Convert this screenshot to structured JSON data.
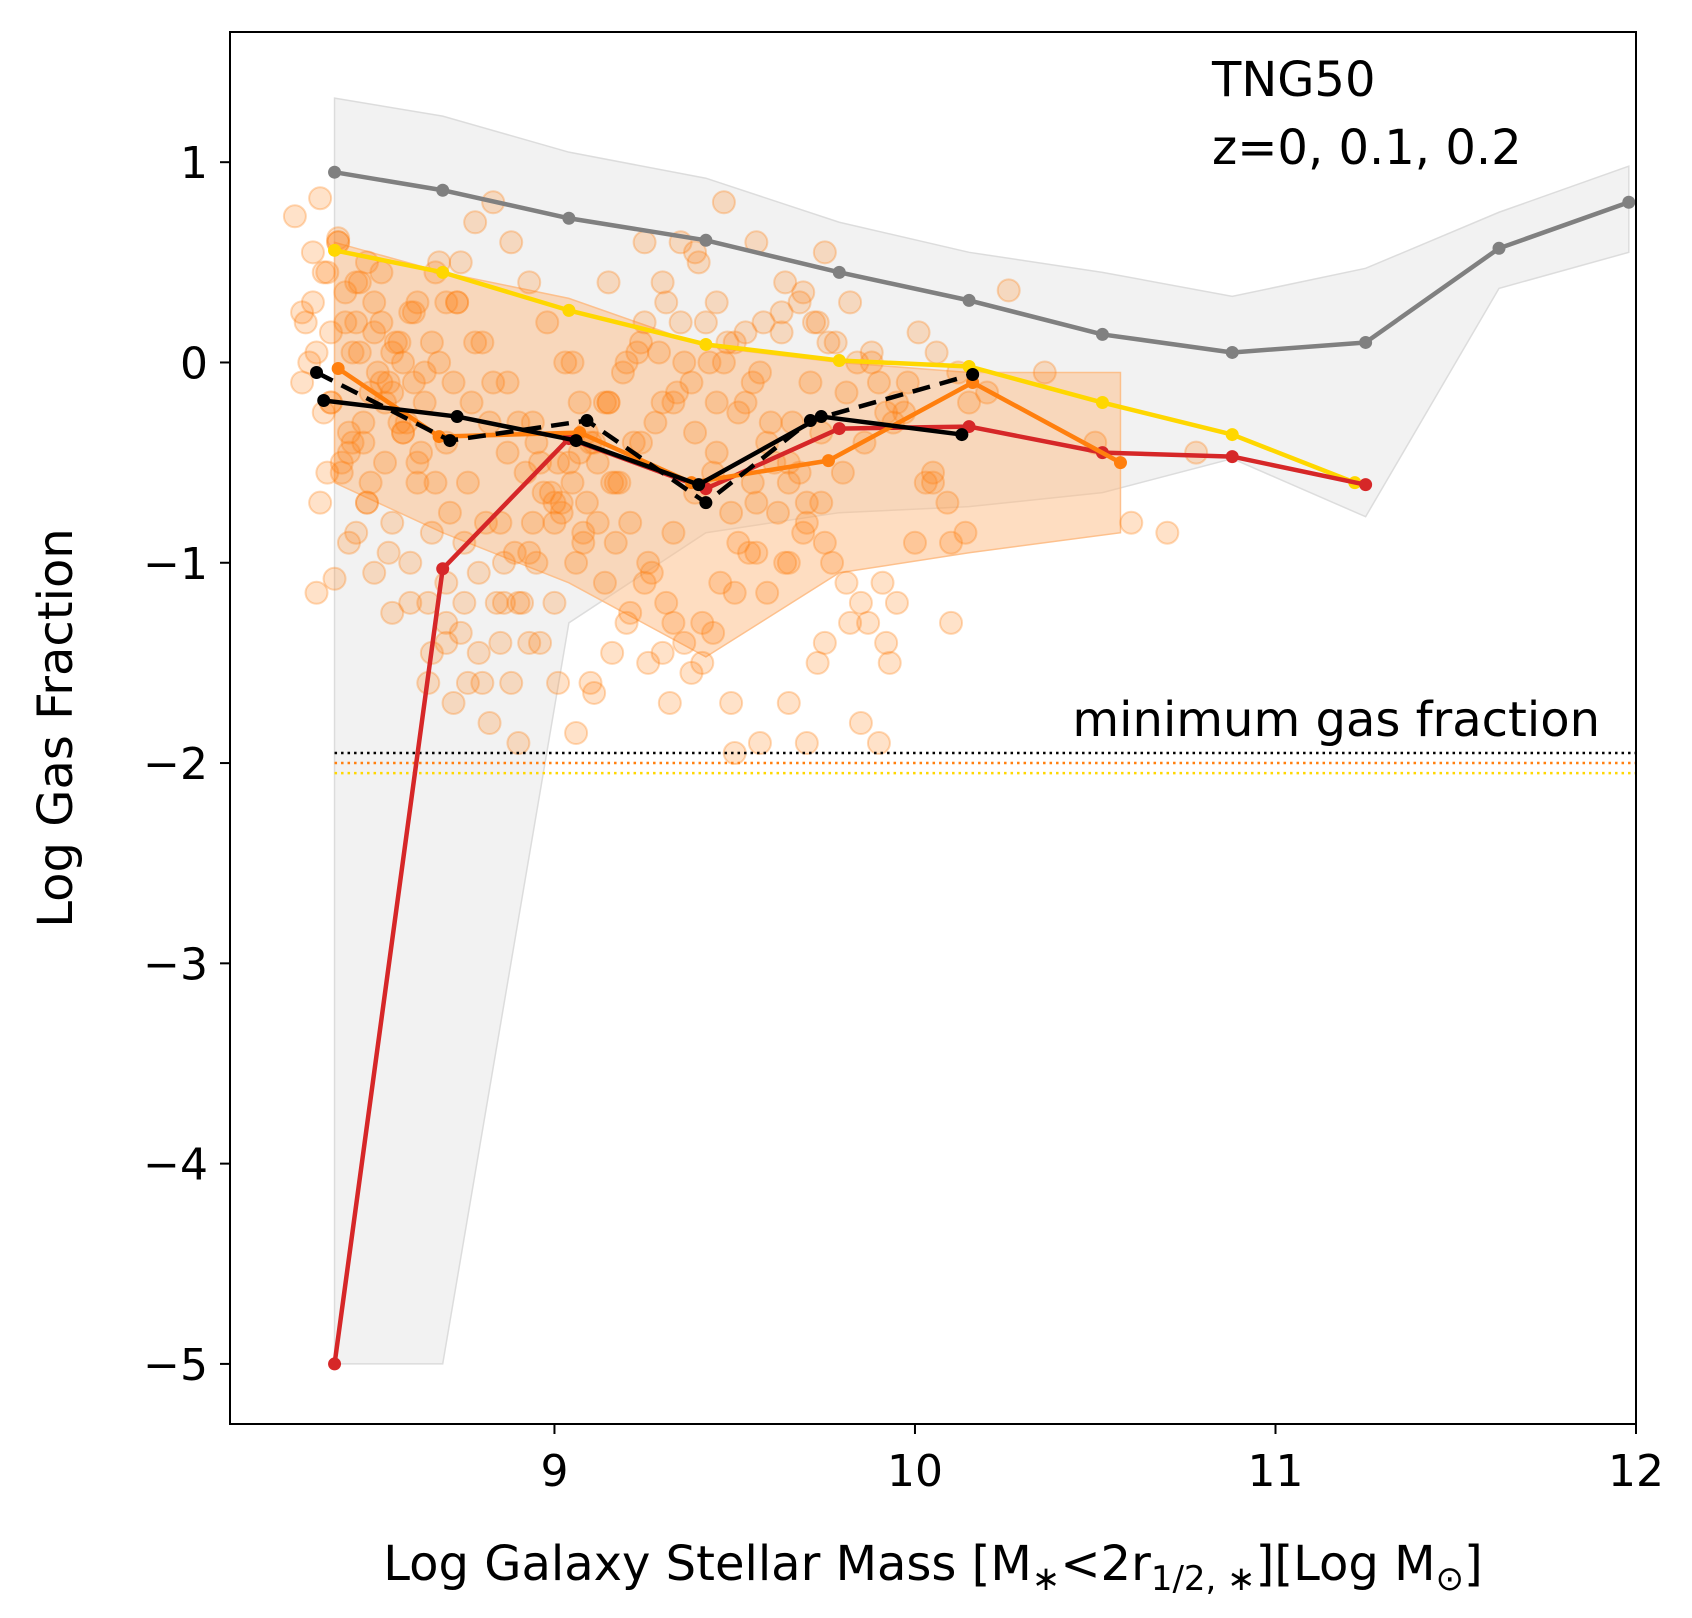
{
  "chart_data": {
    "type": "line",
    "title": "",
    "xlabel_main": "Log Galaxy Stellar Mass [M",
    "xlabel_sub1": "∗",
    "xlabel_mid": "<2r",
    "xlabel_sub2": "1/2, ∗",
    "xlabel_mid2": "][Log M",
    "xlabel_sub3": "⊙",
    "xlabel_end": "]",
    "ylabel": "Log Gas Fraction",
    "xlim": [
      8.1,
      12.0
    ],
    "ylim": [
      -5.3,
      1.65
    ],
    "xticks": [
      9,
      10,
      11,
      12
    ],
    "xtick_labels": [
      "9",
      "10",
      "11",
      "12"
    ],
    "yticks": [
      1,
      0,
      -1,
      -2,
      -3,
      -4,
      -5
    ],
    "ytick_labels": [
      "1",
      "0",
      "−1",
      "−2",
      "−3",
      "−4",
      "−5"
    ],
    "annotations": {
      "sim_name": "TNG50",
      "redshifts": "z=0, 0.1, 0.2",
      "min_label": "minimum gas fraction"
    },
    "min_lines": [
      {
        "y": -1.95,
        "color": "#000000"
      },
      {
        "y": -2.0,
        "color": "#ff7f0e"
      },
      {
        "y": -2.05,
        "color": "#ffd700"
      }
    ],
    "bands": [
      {
        "name": "gray-band",
        "color": "#d9d9d9",
        "opacity": 0.35,
        "x": [
          8.39,
          8.69,
          9.04,
          9.42,
          9.79,
          10.15,
          10.52,
          10.88,
          11.25,
          11.62,
          11.98
        ],
        "upper": [
          1.32,
          1.23,
          1.05,
          0.92,
          0.7,
          0.55,
          0.45,
          0.33,
          0.47,
          0.75,
          0.98
        ],
        "lower": [
          -5.0,
          -5.0,
          -1.3,
          -0.85,
          -0.75,
          -0.72,
          -0.65,
          -0.48,
          -0.77,
          0.37,
          0.55
        ]
      },
      {
        "name": "orange-band",
        "color": "#fdbb84",
        "opacity": 0.5,
        "x": [
          8.39,
          8.69,
          9.04,
          9.42,
          9.79,
          10.15,
          10.57
        ],
        "upper": [
          0.6,
          0.45,
          0.32,
          0.08,
          0.0,
          -0.05,
          -0.05
        ],
        "lower": [
          -0.6,
          -0.85,
          -1.1,
          -1.47,
          -1.05,
          -0.95,
          -0.85
        ]
      }
    ],
    "series": [
      {
        "name": "gray",
        "color": "#808080",
        "dash": false,
        "x": [
          8.39,
          8.69,
          9.04,
          9.42,
          9.79,
          10.15,
          10.52,
          10.88,
          11.25,
          11.62,
          11.98
        ],
        "y": [
          0.95,
          0.86,
          0.72,
          0.61,
          0.45,
          0.31,
          0.14,
          0.05,
          0.1,
          0.57,
          0.8
        ]
      },
      {
        "name": "gold",
        "color": "#ffd700",
        "dash": false,
        "x": [
          8.39,
          8.69,
          9.04,
          9.42,
          9.79,
          10.15,
          10.52,
          10.88,
          11.22
        ],
        "y": [
          0.56,
          0.45,
          0.26,
          0.09,
          0.01,
          -0.02,
          -0.2,
          -0.36,
          -0.6
        ]
      },
      {
        "name": "red",
        "color": "#d62728",
        "dash": false,
        "x": [
          8.39,
          8.69,
          9.04,
          9.42,
          9.79,
          10.15,
          10.52,
          10.88,
          11.25
        ],
        "y": [
          -5.0,
          -1.03,
          -0.38,
          -0.63,
          -0.33,
          -0.32,
          -0.45,
          -0.47,
          -0.61
        ]
      },
      {
        "name": "orange",
        "color": "#ff7f0e",
        "dash": false,
        "x": [
          8.4,
          8.68,
          9.07,
          9.38,
          9.76,
          10.16,
          10.57
        ],
        "y": [
          -0.03,
          -0.37,
          -0.35,
          -0.6,
          -0.49,
          -0.1,
          -0.5
        ]
      },
      {
        "name": "black-solid",
        "color": "#000000",
        "dash": false,
        "x": [
          8.36,
          8.73,
          9.06,
          9.4,
          9.74,
          10.13
        ],
        "y": [
          -0.19,
          -0.27,
          -0.39,
          -0.61,
          -0.27,
          -0.36
        ]
      },
      {
        "name": "black-dashed",
        "color": "#000000",
        "dash": true,
        "x": [
          8.34,
          8.71,
          9.09,
          9.42,
          9.71,
          10.16
        ],
        "y": [
          -0.05,
          -0.39,
          -0.29,
          -0.7,
          -0.29,
          -0.06
        ]
      }
    ],
    "scatter": {
      "name": "galaxies",
      "color": "#ff7f0e",
      "opacity": 0.3,
      "x": [
        8.28,
        8.33,
        8.35,
        8.4,
        8.42,
        8.45,
        8.48,
        8.52,
        8.38,
        8.44,
        8.5,
        8.56,
        8.6,
        8.64,
        8.3,
        8.36,
        8.41,
        8.47,
        8.53,
        8.58,
        8.62,
        8.68,
        8.72,
        8.77,
        8.82,
        8.87,
        8.92,
        8.97,
        9.02,
        9.08,
        9.12,
        9.17,
        9.22,
        9.28,
        9.33,
        9.38,
        9.43,
        9.48,
        9.53,
        9.58,
        9.63,
        9.68,
        9.73,
        9.78,
        9.84,
        9.9,
        9.95,
        10.01,
        10.06,
        10.12,
        10.2,
        10.26,
        10.36,
        10.5,
        10.6,
        10.7,
        10.78,
        8.33,
        8.37,
        8.42,
        8.46,
        8.51,
        8.55,
        8.59,
        8.63,
        8.67,
        8.71,
        8.75,
        8.79,
        8.84,
        8.89,
        8.94,
        8.99,
        9.04,
        9.09,
        9.14,
        9.19,
        9.24,
        9.29,
        9.34,
        9.39,
        9.44,
        9.49,
        9.54,
        9.59,
        9.64,
        9.69,
        9.74,
        9.8,
        9.86,
        9.92,
        9.98,
        8.34,
        8.39,
        8.43,
        8.48,
        8.53,
        8.57,
        8.61,
        8.66,
        8.7,
        8.74,
        8.78,
        8.83,
        8.88,
        8.93,
        8.98,
        9.03,
        9.07,
        9.11,
        9.16,
        9.21,
        9.26,
        9.31,
        9.36,
        9.41,
        9.46,
        9.51,
        9.56,
        9.61,
        9.66,
        9.71,
        9.76,
        9.82,
        9.88,
        9.94,
        10.03,
        10.1,
        8.31,
        8.36,
        8.4,
        8.45,
        8.5,
        8.54,
        8.58,
        8.62,
        8.66,
        8.7,
        8.74,
        8.8,
        8.85,
        8.9,
        8.95,
        9.0,
        9.05,
        9.1,
        9.15,
        9.2,
        9.25,
        9.3,
        9.35,
        9.4,
        9.45,
        9.5,
        9.55,
        9.6,
        9.65,
        9.7,
        9.75,
        9.81,
        9.87,
        9.93,
        8.35,
        8.41,
        8.47,
        8.52,
        8.57,
        8.62,
        8.68,
        8.73,
        8.78,
        8.83,
        8.9,
        8.96,
        9.02,
        9.08,
        9.14,
        9.2,
        9.26,
        9.32,
        9.38,
        9.44,
        9.5,
        9.56,
        9.62,
        9.68,
        9.74,
        9.81,
        9.88,
        9.97,
        10.05,
        10.14,
        8.32,
        8.38,
        8.44,
        8.49,
        8.55,
        8.6,
        8.65,
        8.7,
        8.76,
        8.82,
        8.88,
        8.93,
        9.0,
        9.06,
        9.12,
        9.18,
        9.24,
        9.3,
        9.36,
        9.42,
        9.47,
        9.53,
        9.59,
        9.65,
        9.7,
        9.77,
        9.85,
        9.92,
        8.4,
        8.46,
        8.52,
        8.58,
        8.64,
        8.7,
        8.76,
        8.81,
        8.86,
        8.91,
        8.96,
        9.01,
        9.06,
        9.11,
        9.16,
        9.21,
        9.27,
        9.33,
        9.39,
        9.45,
        9.51,
        9.57,
        9.63,
        9.69,
        9.75,
        8.37,
        8.43,
        8.49,
        8.55,
        8.61,
        8.67,
        8.73,
        8.8,
        8.87,
        8.94,
        9.01,
        9.09,
        9.17,
        9.25,
        9.33,
        9.41,
        9.49,
        9.57,
        9.65,
        9.73,
        9.82,
        9.91,
        10.0,
        10.09,
        8.3,
        8.34,
        8.38,
        8.43,
        8.48,
        8.54,
        8.6,
        8.66,
        8.72,
        8.79,
        8.86,
        8.93,
        9.0,
        9.07,
        9.15,
        9.23,
        9.31,
        9.39,
        9.47,
        9.56,
        9.64,
        9.72,
        8.45,
        8.55,
        8.65,
        8.75,
        8.85,
        8.95,
        9.05,
        9.15,
        9.25,
        9.35,
        9.45,
        9.55,
        9.65,
        9.75,
        9.85,
        9.95,
        10.05,
        10.15,
        8.5,
        8.7,
        8.9,
        9.1,
        9.3,
        9.5,
        9.7,
        9.9,
        10.1
      ],
      "y": [
        0.73,
        0.55,
        0.82,
        0.6,
        0.35,
        0.2,
        0.5,
        0.45,
        0.15,
        0.05,
        0.3,
        0.1,
        0.25,
        -0.05,
        -0.1,
        -0.25,
        -0.55,
        -0.4,
        -0.2,
        -0.35,
        -0.5,
        0.0,
        -0.1,
        -0.2,
        -0.3,
        -0.45,
        -0.55,
        -0.65,
        -0.75,
        -0.85,
        -0.5,
        -0.6,
        -0.4,
        -0.3,
        -0.2,
        -0.1,
        0.0,
        0.1,
        0.15,
        0.2,
        0.25,
        0.3,
        0.2,
        0.1,
        0.0,
        -0.1,
        -0.2,
        0.15,
        0.05,
        -0.05,
        -0.15,
        0.36,
        -0.05,
        -0.4,
        -0.8,
        -0.85,
        -0.45,
        0.3,
        0.45,
        0.2,
        0.05,
        -0.05,
        -0.15,
        -0.3,
        -0.45,
        -0.6,
        -0.75,
        -0.9,
        -1.05,
        -1.2,
        -0.95,
        -0.8,
        -0.65,
        -0.5,
        -0.35,
        -0.2,
        -0.05,
        0.1,
        0.05,
        -0.15,
        -0.35,
        -0.55,
        -0.75,
        -0.95,
        -1.15,
        -1.0,
        -0.85,
        -0.7,
        -0.55,
        -0.4,
        -0.25,
        -0.1,
        -1.15,
        -1.08,
        -0.9,
        -0.7,
        -0.5,
        -0.3,
        -0.1,
        0.1,
        0.3,
        0.5,
        0.7,
        0.8,
        0.6,
        0.4,
        0.2,
        0.0,
        -0.2,
        -0.4,
        -0.6,
        -0.8,
        -1.0,
        -1.2,
        -1.4,
        -1.3,
        -1.1,
        -0.9,
        -0.7,
        -0.5,
        -0.3,
        -0.1,
        0.1,
        0.3,
        0.0,
        -0.3,
        -0.6,
        -0.9,
        0.2,
        0.45,
        0.62,
        0.4,
        0.15,
        -0.1,
        -0.35,
        -0.6,
        -0.85,
        -1.1,
        -1.35,
        -1.6,
        -1.4,
        -1.2,
        -1.0,
        -0.8,
        -0.6,
        -0.4,
        -0.2,
        0.0,
        0.2,
        0.4,
        0.6,
        0.5,
        0.3,
        0.1,
        -0.1,
        -0.3,
        -0.5,
        -0.7,
        -0.9,
        -1.1,
        -1.3,
        -1.5,
        -0.7,
        -0.5,
        -0.3,
        -0.1,
        0.1,
        0.3,
        0.5,
        0.3,
        0.1,
        -0.1,
        -0.3,
        -0.5,
        -0.7,
        -0.9,
        -1.1,
        -1.3,
        -1.5,
        -1.7,
        -1.55,
        -1.35,
        -1.15,
        -0.95,
        -0.75,
        -0.55,
        -0.35,
        -0.15,
        0.05,
        -0.25,
        -0.55,
        -0.85,
        0.0,
        -0.2,
        -0.4,
        -0.6,
        -0.8,
        -1.0,
        -1.2,
        -1.4,
        -1.6,
        -1.8,
        -1.6,
        -1.4,
        -1.2,
        -1.0,
        -0.8,
        -0.6,
        -0.4,
        -0.2,
        0.0,
        0.2,
        0.0,
        -0.2,
        -0.4,
        -0.6,
        -0.8,
        -1.0,
        -1.2,
        -1.4,
        0.6,
        0.4,
        0.2,
        0.0,
        -0.2,
        -0.4,
        -0.6,
        -0.8,
        -1.0,
        -1.2,
        -1.4,
        -1.6,
        -1.85,
        -1.65,
        -1.45,
        -1.25,
        -1.05,
        -0.85,
        -0.65,
        -0.45,
        -0.25,
        -0.05,
        0.15,
        0.35,
        0.55,
        -0.55,
        -0.35,
        -0.15,
        0.05,
        0.25,
        0.45,
        0.3,
        0.1,
        -0.1,
        -0.3,
        -0.5,
        -0.7,
        -0.9,
        -1.1,
        -1.3,
        -1.5,
        -1.7,
        -1.9,
        -1.7,
        -1.5,
        -1.3,
        -1.1,
        -0.9,
        -0.7,
        0.25,
        0.05,
        -0.2,
        -0.45,
        -0.7,
        -0.95,
        -1.2,
        -1.45,
        -1.7,
        -1.45,
        -1.2,
        -0.95,
        -0.7,
        -0.45,
        -0.2,
        0.05,
        0.3,
        0.55,
        0.8,
        0.6,
        0.4,
        0.2,
        -0.85,
        -1.25,
        -1.6,
        -1.2,
        -0.8,
        -0.4,
        0.0,
        0.4,
        0.6,
        0.2,
        -0.2,
        -0.6,
        -1.0,
        -1.4,
        -1.8,
        -1.2,
        -0.6,
        -0.2,
        -1.05,
        -1.3,
        -1.9,
        -1.6,
        -1.45,
        -1.95,
        -1.9,
        -1.9,
        -1.3
      ]
    }
  }
}
